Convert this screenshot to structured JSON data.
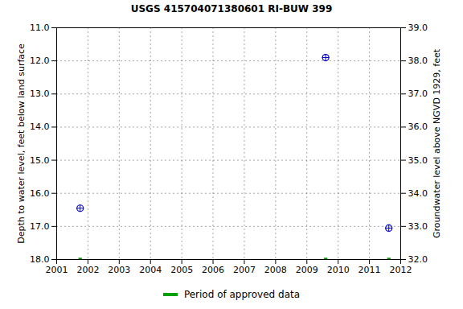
{
  "chart_data": {
    "type": "scatter",
    "title": "USGS 415704071380601 RI-BUW  399",
    "y_label": "Depth to water level, feet below land surface",
    "y2_label": "Groundwater level above NGVD 1929, feet",
    "x": [
      2001.75,
      2009.6,
      2011.62
    ],
    "values": [
      16.45,
      11.9,
      17.05
    ],
    "color": "#0000cc",
    "marker": "circle",
    "xlim": [
      2001,
      2012
    ],
    "xticks": [
      2001,
      2002,
      2003,
      2004,
      2005,
      2006,
      2007,
      2008,
      2009,
      2010,
      2011,
      2012
    ],
    "ylim": [
      18,
      11
    ],
    "yticks": [
      {
        "value": 11,
        "label": "11.0"
      },
      {
        "value": 12,
        "label": "12.0"
      },
      {
        "value": 13,
        "label": "13.0"
      },
      {
        "value": 14,
        "label": "14.0"
      },
      {
        "value": 15,
        "label": "15.0"
      },
      {
        "value": 16,
        "label": "16.0"
      },
      {
        "value": 17,
        "label": "17.0"
      },
      {
        "value": 18,
        "label": "18.0"
      }
    ],
    "y2lim": [
      32,
      39
    ],
    "y2ticks": [
      {
        "value": 32,
        "label": "32.0"
      },
      {
        "value": 33,
        "label": "33.0"
      },
      {
        "value": 34,
        "label": "34.0"
      },
      {
        "value": 35,
        "label": "35.0"
      },
      {
        "value": 36,
        "label": "36.0"
      },
      {
        "value": 37,
        "label": "37.0"
      },
      {
        "value": 38,
        "label": "38.0"
      },
      {
        "value": 39,
        "label": "39.0"
      }
    ],
    "grid": true,
    "legend": "bottom",
    "approved_periods": {
      "name": "Period of approved data",
      "color": "#00a000",
      "x": [
        2001.75,
        2009.6,
        2011.62
      ]
    }
  }
}
